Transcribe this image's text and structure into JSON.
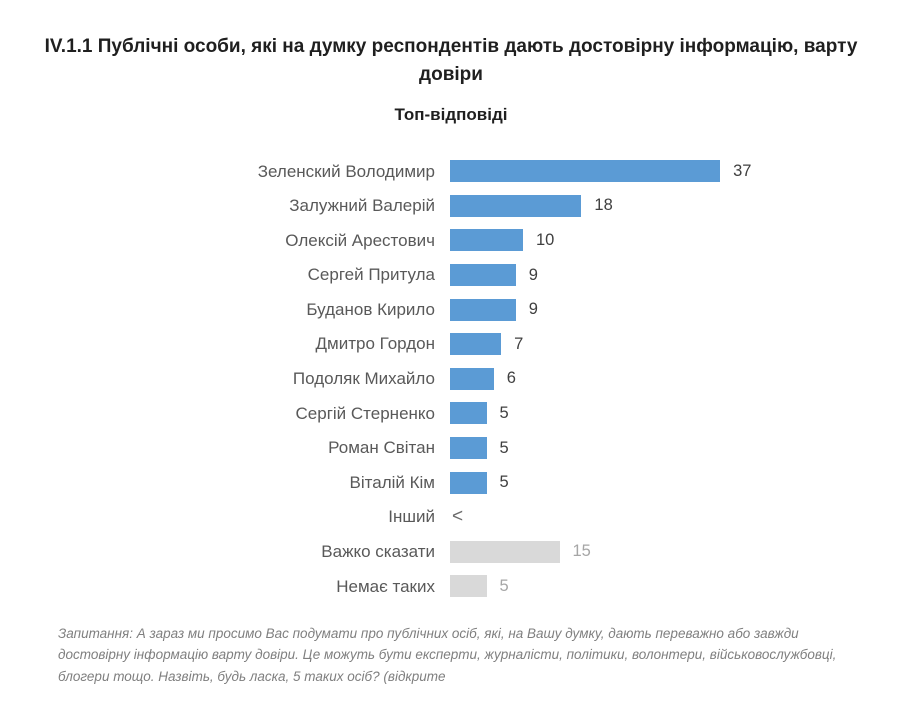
{
  "header": {
    "title": "IV.1.1 Публічні особи, які на думку респондентів дають достовірну інформацію, варту довіри",
    "subtitle": "Топ-відповіді"
  },
  "chart_data": {
    "type": "bar",
    "orientation": "horizontal",
    "title": "IV.1.1 Публічні особи, які на думку респондентів дають достовірну інформацію, варту довіри",
    "subtitle": "Топ-відповіді",
    "xlim": [
      0,
      40
    ],
    "grid": false,
    "legend": "none",
    "categories": [
      "Зеленский Володимир",
      "Залужний Валерій",
      "Олексій Арестович",
      "Сергей Притула",
      "Буданов Кирило",
      "Дмитро Гордон",
      "Подоляк Михайло",
      "Сергій Стерненко",
      "Роман Світан",
      "Віталій Кім",
      "Інший",
      "Важко сказати",
      "Немає таких"
    ],
    "values": [
      37,
      18,
      10,
      9,
      9,
      7,
      6,
      5,
      5,
      5,
      null,
      15,
      5
    ],
    "rows": [
      {
        "label": "Зеленский Володимир",
        "value": 37,
        "display": "37",
        "variant": "blue"
      },
      {
        "label": "Залужний Валерій",
        "value": 18,
        "display": "18",
        "variant": "blue"
      },
      {
        "label": "Олексій Арестович",
        "value": 10,
        "display": "10",
        "variant": "blue"
      },
      {
        "label": "Сергей Притула",
        "value": 9,
        "display": "9",
        "variant": "blue"
      },
      {
        "label": "Буданов Кирило",
        "value": 9,
        "display": "9",
        "variant": "blue"
      },
      {
        "label": "Дмитро Гордон",
        "value": 7,
        "display": "7",
        "variant": "blue"
      },
      {
        "label": "Подоляк Михайло",
        "value": 6,
        "display": "6",
        "variant": "blue"
      },
      {
        "label": "Сергій Стерненко",
        "value": 5,
        "display": "5",
        "variant": "blue"
      },
      {
        "label": "Роман Світан",
        "value": 5,
        "display": "5",
        "variant": "blue"
      },
      {
        "label": "Віталій Кім",
        "value": 5,
        "display": "5",
        "variant": "blue"
      },
      {
        "label": "Інший",
        "value": null,
        "display": "<",
        "variant": "none"
      },
      {
        "label": "Важко сказати",
        "value": 15,
        "display": "15",
        "variant": "gray"
      },
      {
        "label": "Немає таких",
        "value": 5,
        "display": "5",
        "variant": "gray"
      }
    ],
    "colors": {
      "bar_blue": "#5B9BD5",
      "bar_gray": "#D9D9D9",
      "value_dark": "#404040",
      "value_gray": "#A6A6A6",
      "label_gray": "#595959"
    }
  },
  "footnote": {
    "text": "Запитання: А зараз ми просимо Вас подумати про публічних осіб, які, на Вашу думку, дають переважно або завжди достовірну інформацію варту довіри. Це можуть бути експерти, журналісти, політики, волонтери, військовослужбовці, блогери тощо. Назвіть, будь ласка, 5 таких осіб? (відкрите"
  }
}
